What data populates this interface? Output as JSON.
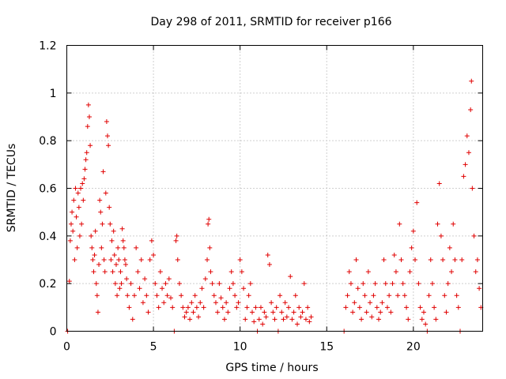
{
  "chart_data": {
    "type": "scatter",
    "title": "Day 298 of 2011, SRMTID for receiver p166",
    "xlabel": "GPS time / hours",
    "ylabel": "SRMTID / TECUs",
    "xlim": [
      0,
      24
    ],
    "ylim": [
      0,
      1.2
    ],
    "xticks": [
      0,
      5,
      10,
      15,
      20
    ],
    "xtick_labels": [
      "0",
      "5",
      "10",
      "15",
      "20"
    ],
    "yticks": [
      0,
      0.2,
      0.4,
      0.6,
      0.8,
      1,
      1.2
    ],
    "ytick_labels": [
      "0",
      "0.2",
      "0.4",
      "0.6",
      "0.8",
      "1",
      "1.2"
    ],
    "grid": true,
    "marker": "+",
    "color": "#e00000",
    "series": [
      {
        "name": "SRMTID",
        "points": [
          [
            0.05,
            0.0
          ],
          [
            0.15,
            0.21
          ],
          [
            0.2,
            0.38
          ],
          [
            0.25,
            0.45
          ],
          [
            0.3,
            0.5
          ],
          [
            0.35,
            0.42
          ],
          [
            0.4,
            0.55
          ],
          [
            0.45,
            0.3
          ],
          [
            0.5,
            0.6
          ],
          [
            0.55,
            0.48
          ],
          [
            0.6,
            0.35
          ],
          [
            0.65,
            0.58
          ],
          [
            0.7,
            0.52
          ],
          [
            0.75,
            0.4
          ],
          [
            0.8,
            0.6
          ],
          [
            0.85,
            0.45
          ],
          [
            0.9,
            0.62
          ],
          [
            0.95,
            0.55
          ],
          [
            1.0,
            0.64
          ],
          [
            1.05,
            0.68
          ],
          [
            1.1,
            0.72
          ],
          [
            1.15,
            0.75
          ],
          [
            1.2,
            0.86
          ],
          [
            1.25,
            0.95
          ],
          [
            1.3,
            0.9
          ],
          [
            1.35,
            0.78
          ],
          [
            1.4,
            0.4
          ],
          [
            1.45,
            0.35
          ],
          [
            1.5,
            0.3
          ],
          [
            1.55,
            0.25
          ],
          [
            1.6,
            0.32
          ],
          [
            1.65,
            0.42
          ],
          [
            1.7,
            0.2
          ],
          [
            1.75,
            0.15
          ],
          [
            1.8,
            0.08
          ],
          [
            1.85,
            0.28
          ],
          [
            1.9,
            0.55
          ],
          [
            1.95,
            0.5
          ],
          [
            2.0,
            0.35
          ],
          [
            2.05,
            0.45
          ],
          [
            2.1,
            0.67
          ],
          [
            2.15,
            0.3
          ],
          [
            2.2,
            0.25
          ],
          [
            2.25,
            0.58
          ],
          [
            2.3,
            0.88
          ],
          [
            2.35,
            0.82
          ],
          [
            2.4,
            0.78
          ],
          [
            2.45,
            0.52
          ],
          [
            2.5,
            0.45
          ],
          [
            2.55,
            0.3
          ],
          [
            2.6,
            0.38
          ],
          [
            2.65,
            0.25
          ],
          [
            2.7,
            0.42
          ],
          [
            2.75,
            0.32
          ],
          [
            2.8,
            0.2
          ],
          [
            2.85,
            0.28
          ],
          [
            2.9,
            0.15
          ],
          [
            2.95,
            0.35
          ],
          [
            3.0,
            0.3
          ],
          [
            3.05,
            0.18
          ],
          [
            3.1,
            0.25
          ],
          [
            3.15,
            0.2
          ],
          [
            3.2,
            0.43
          ],
          [
            3.25,
            0.38
          ],
          [
            3.3,
            0.35
          ],
          [
            3.35,
            0.3
          ],
          [
            3.4,
            0.28
          ],
          [
            3.45,
            0.22
          ],
          [
            3.5,
            0.15
          ],
          [
            3.6,
            0.1
          ],
          [
            3.7,
            0.2
          ],
          [
            3.8,
            0.05
          ],
          [
            3.9,
            0.15
          ],
          [
            4.0,
            0.35
          ],
          [
            4.1,
            0.25
          ],
          [
            4.2,
            0.18
          ],
          [
            4.3,
            0.3
          ],
          [
            4.4,
            0.12
          ],
          [
            4.5,
            0.22
          ],
          [
            4.6,
            0.15
          ],
          [
            4.7,
            0.08
          ],
          [
            4.8,
            0.3
          ],
          [
            4.9,
            0.38
          ],
          [
            5.0,
            0.32
          ],
          [
            5.1,
            0.2
          ],
          [
            5.2,
            0.15
          ],
          [
            5.3,
            0.1
          ],
          [
            5.4,
            0.25
          ],
          [
            5.5,
            0.18
          ],
          [
            5.6,
            0.12
          ],
          [
            5.7,
            0.2
          ],
          [
            5.8,
            0.15
          ],
          [
            5.9,
            0.22
          ],
          [
            6.0,
            0.14
          ],
          [
            6.1,
            0.1
          ],
          [
            6.2,
            0.0
          ],
          [
            6.3,
            0.38
          ],
          [
            6.35,
            0.4
          ],
          [
            6.4,
            0.3
          ],
          [
            6.5,
            0.2
          ],
          [
            6.6,
            0.15
          ],
          [
            6.7,
            0.1
          ],
          [
            6.8,
            0.06
          ],
          [
            6.9,
            0.08
          ],
          [
            7.0,
            0.1
          ],
          [
            7.1,
            0.05
          ],
          [
            7.2,
            0.12
          ],
          [
            7.3,
            0.08
          ],
          [
            7.4,
            0.15
          ],
          [
            7.5,
            0.1
          ],
          [
            7.6,
            0.06
          ],
          [
            7.7,
            0.12
          ],
          [
            7.8,
            0.18
          ],
          [
            7.9,
            0.1
          ],
          [
            8.0,
            0.22
          ],
          [
            8.1,
            0.3
          ],
          [
            8.15,
            0.45
          ],
          [
            8.2,
            0.47
          ],
          [
            8.25,
            0.35
          ],
          [
            8.3,
            0.25
          ],
          [
            8.4,
            0.2
          ],
          [
            8.5,
            0.15
          ],
          [
            8.6,
            0.12
          ],
          [
            8.7,
            0.08
          ],
          [
            8.8,
            0.2
          ],
          [
            8.9,
            0.14
          ],
          [
            9.0,
            0.1
          ],
          [
            9.1,
            0.05
          ],
          [
            9.2,
            0.12
          ],
          [
            9.3,
            0.08
          ],
          [
            9.4,
            0.18
          ],
          [
            9.5,
            0.25
          ],
          [
            9.6,
            0.2
          ],
          [
            9.7,
            0.15
          ],
          [
            9.8,
            0.1
          ],
          [
            9.9,
            0.12
          ],
          [
            10.0,
            0.3
          ],
          [
            10.1,
            0.25
          ],
          [
            10.2,
            0.18
          ],
          [
            10.3,
            0.05
          ],
          [
            10.4,
            0.1
          ],
          [
            10.5,
            0.15
          ],
          [
            10.6,
            0.2
          ],
          [
            10.7,
            0.08
          ],
          [
            10.8,
            0.04
          ],
          [
            10.9,
            0.1
          ],
          [
            11.0,
            0.0
          ],
          [
            11.1,
            0.05
          ],
          [
            11.2,
            0.1
          ],
          [
            11.3,
            0.03
          ],
          [
            11.4,
            0.08
          ],
          [
            11.5,
            0.06
          ],
          [
            11.6,
            0.32
          ],
          [
            11.7,
            0.28
          ],
          [
            11.8,
            0.12
          ],
          [
            11.9,
            0.08
          ],
          [
            12.0,
            0.05
          ],
          [
            12.1,
            0.1
          ],
          [
            12.2,
            0.0
          ],
          [
            12.3,
            0.15
          ],
          [
            12.4,
            0.08
          ],
          [
            12.5,
            0.05
          ],
          [
            12.6,
            0.12
          ],
          [
            12.7,
            0.06
          ],
          [
            12.8,
            0.1
          ],
          [
            12.9,
            0.23
          ],
          [
            13.0,
            0.05
          ],
          [
            13.1,
            0.08
          ],
          [
            13.2,
            0.15
          ],
          [
            13.3,
            0.03
          ],
          [
            13.4,
            0.1
          ],
          [
            13.5,
            0.06
          ],
          [
            13.6,
            0.08
          ],
          [
            13.7,
            0.2
          ],
          [
            13.8,
            0.05
          ],
          [
            13.9,
            0.1
          ],
          [
            14.0,
            0.04
          ],
          [
            14.1,
            0.06
          ],
          [
            16.0,
            0.0
          ],
          [
            16.1,
            0.1
          ],
          [
            16.2,
            0.15
          ],
          [
            16.3,
            0.25
          ],
          [
            16.4,
            0.2
          ],
          [
            16.5,
            0.08
          ],
          [
            16.6,
            0.12
          ],
          [
            16.7,
            0.3
          ],
          [
            16.8,
            0.18
          ],
          [
            16.9,
            0.1
          ],
          [
            17.0,
            0.05
          ],
          [
            17.1,
            0.2
          ],
          [
            17.2,
            0.15
          ],
          [
            17.3,
            0.08
          ],
          [
            17.4,
            0.25
          ],
          [
            17.5,
            0.12
          ],
          [
            17.6,
            0.06
          ],
          [
            17.7,
            0.15
          ],
          [
            17.8,
            0.2
          ],
          [
            17.9,
            0.1
          ],
          [
            18.0,
            0.05
          ],
          [
            18.1,
            0.08
          ],
          [
            18.2,
            0.12
          ],
          [
            18.3,
            0.3
          ],
          [
            18.4,
            0.2
          ],
          [
            18.5,
            0.1
          ],
          [
            18.6,
            0.15
          ],
          [
            18.7,
            0.08
          ],
          [
            18.8,
            0.2
          ],
          [
            18.9,
            0.32
          ],
          [
            19.0,
            0.25
          ],
          [
            19.1,
            0.15
          ],
          [
            19.2,
            0.45
          ],
          [
            19.3,
            0.3
          ],
          [
            19.4,
            0.2
          ],
          [
            19.5,
            0.15
          ],
          [
            19.6,
            0.1
          ],
          [
            19.7,
            0.05
          ],
          [
            19.8,
            0.25
          ],
          [
            19.9,
            0.35
          ],
          [
            20.0,
            0.42
          ],
          [
            20.1,
            0.3
          ],
          [
            20.2,
            0.54
          ],
          [
            20.3,
            0.2
          ],
          [
            20.4,
            0.1
          ],
          [
            20.5,
            0.05
          ],
          [
            20.6,
            0.08
          ],
          [
            20.7,
            0.03
          ],
          [
            20.8,
            0.0
          ],
          [
            20.9,
            0.15
          ],
          [
            21.0,
            0.3
          ],
          [
            21.1,
            0.2
          ],
          [
            21.2,
            0.1
          ],
          [
            21.3,
            0.05
          ],
          [
            21.4,
            0.45
          ],
          [
            21.5,
            0.62
          ],
          [
            21.6,
            0.4
          ],
          [
            21.7,
            0.3
          ],
          [
            21.8,
            0.15
          ],
          [
            21.9,
            0.08
          ],
          [
            22.0,
            0.2
          ],
          [
            22.1,
            0.35
          ],
          [
            22.2,
            0.25
          ],
          [
            22.3,
            0.45
          ],
          [
            22.4,
            0.3
          ],
          [
            22.5,
            0.15
          ],
          [
            22.6,
            0.1
          ],
          [
            22.7,
            0.0
          ],
          [
            22.8,
            0.3
          ],
          [
            22.9,
            0.65
          ],
          [
            23.0,
            0.7
          ],
          [
            23.1,
            0.82
          ],
          [
            23.2,
            0.75
          ],
          [
            23.3,
            0.93
          ],
          [
            23.35,
            1.05
          ],
          [
            23.4,
            0.6
          ],
          [
            23.5,
            0.4
          ],
          [
            23.6,
            0.25
          ],
          [
            23.7,
            0.3
          ],
          [
            23.8,
            0.18
          ],
          [
            23.9,
            0.1
          ]
        ]
      }
    ]
  }
}
